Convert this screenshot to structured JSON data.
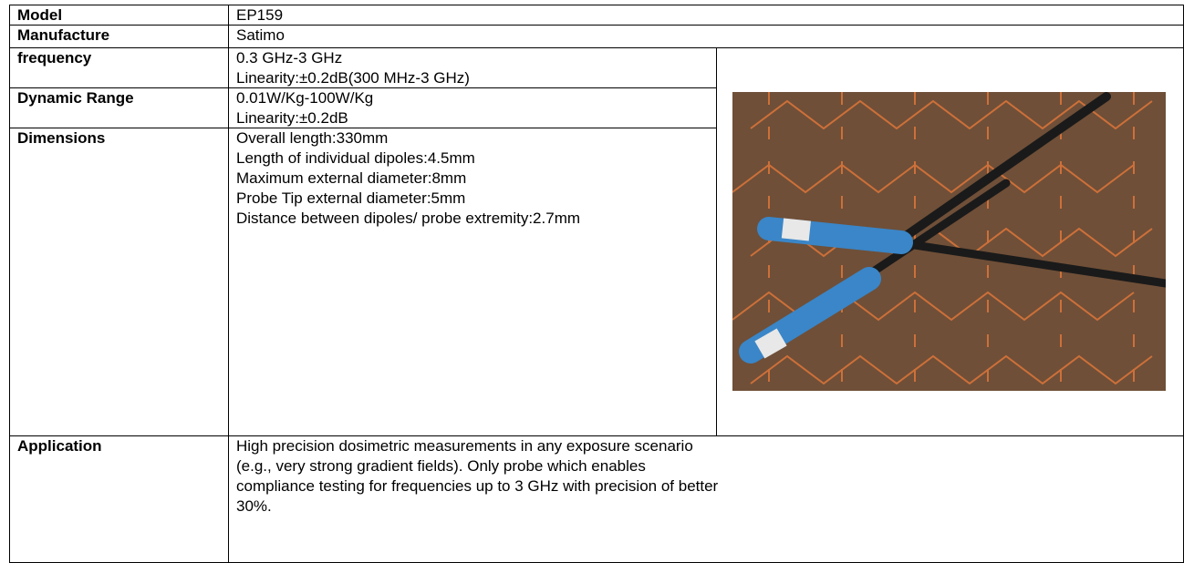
{
  "table": {
    "rows": [
      {
        "label": "Model",
        "lines": [
          "EP159"
        ]
      },
      {
        "label": "Manufacture",
        "lines": [
          "Satimo"
        ]
      },
      {
        "label": "frequency",
        "lines": [
          "0.3 GHz-3 GHz",
          "Linearity:±0.2dB(300 MHz-3 GHz)"
        ]
      },
      {
        "label": "Dynamic Range",
        "lines": [
          "0.01W/Kg-100W/Kg",
          "Linearity:±0.2dB"
        ]
      },
      {
        "label": "Dimensions",
        "lines": [
          "Overall length:330mm",
          "Length of individual dipoles:4.5mm",
          "Maximum external diameter:8mm",
          "Probe Tip external diameter:5mm",
          "Distance between dipoles/ probe extremity:2.7mm"
        ]
      },
      {
        "label": "Application",
        "lines": [
          "High precision dosimetric measurements in any exposure scenario",
          "(e.g., very strong gradient fields). Only probe which enables",
          "compliance testing for frequencies up to 3 GHz with precision of better",
          "30%."
        ]
      }
    ]
  }
}
